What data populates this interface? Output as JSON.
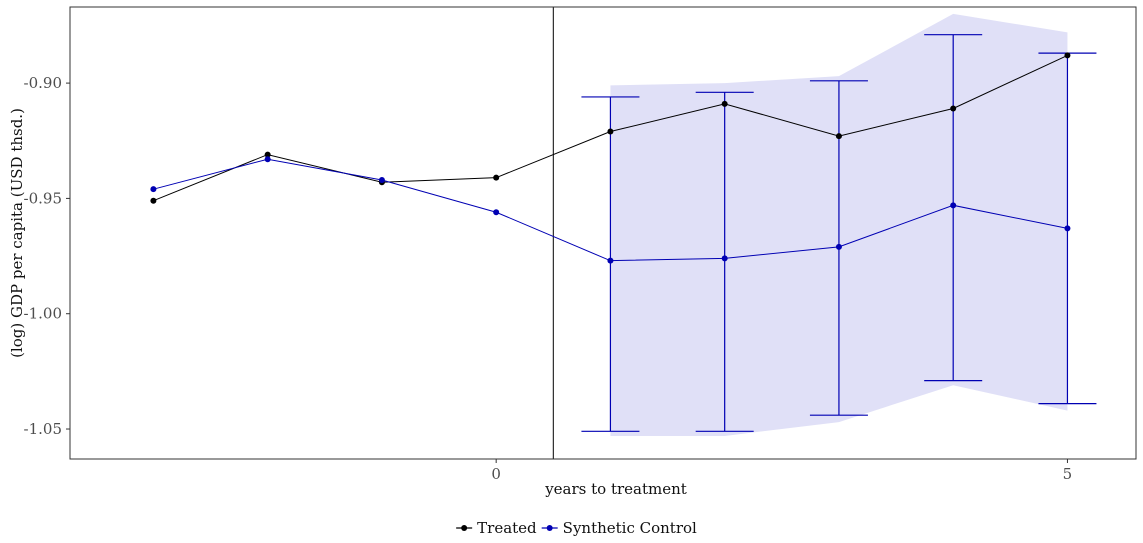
{
  "chart_data": {
    "type": "line",
    "title": "",
    "xlabel": "years to treatment",
    "ylabel": "(log) GDP per capita (USD thsd.)",
    "x": [
      -3,
      -2,
      -1,
      0,
      1,
      2,
      3,
      4,
      5
    ],
    "xlim": [
      -3.73,
      5.6
    ],
    "ylim": [
      -1.063,
      -0.867
    ],
    "x_ticks": [
      0,
      5
    ],
    "x_tick_labels": [
      "0",
      "5"
    ],
    "y_ticks": [
      -0.9,
      -0.95,
      -1.0,
      -1.05
    ],
    "y_tick_labels": [
      "-0.90",
      "-0.95",
      "-1.00",
      "-1.05"
    ],
    "treatment_line_x": 0.5,
    "grid": false,
    "legend_position": "bottom",
    "series": [
      {
        "name": "Treated",
        "color": "#000000",
        "values": [
          -0.951,
          -0.931,
          -0.943,
          -0.941,
          -0.921,
          -0.909,
          -0.923,
          -0.911,
          -0.888
        ]
      },
      {
        "name": "Synthetic Control",
        "color": "#0000b3",
        "values": [
          -0.946,
          -0.933,
          -0.942,
          -0.956,
          -0.977,
          -0.976,
          -0.971,
          -0.953,
          -0.963
        ]
      }
    ],
    "confidence_band": {
      "color": "#e0e0f7",
      "x": [
        1,
        2,
        3,
        4,
        5
      ],
      "upper": [
        -0.901,
        -0.9,
        -0.897,
        -0.87,
        -0.878
      ],
      "lower": [
        -1.053,
        -1.053,
        -1.047,
        -1.031,
        -1.042
      ]
    },
    "error_bars": {
      "color": "#0000b3",
      "x": [
        1,
        2,
        3,
        4,
        5
      ],
      "upper": [
        -0.906,
        -0.904,
        -0.899,
        -0.879,
        -0.887
      ],
      "lower": [
        -1.051,
        -1.051,
        -1.044,
        -1.029,
        -1.039
      ]
    }
  }
}
